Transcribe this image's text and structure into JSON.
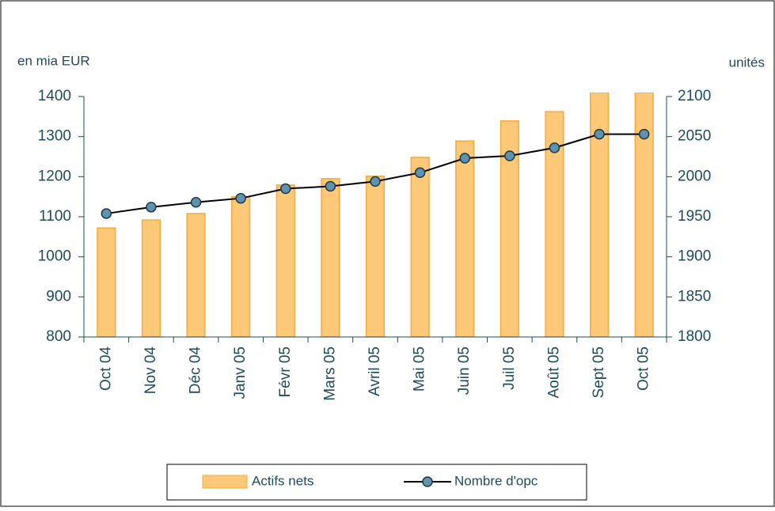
{
  "chart_data": {
    "type": "bar_line",
    "y_label": "en mia EUR",
    "y2_label": "unités",
    "categories": [
      "Oct 04",
      "Nov 04",
      "Déc 04",
      "Janv 05",
      "Févr 05",
      "Mars 05",
      "Avril 05",
      "Mai 05",
      "Juin 05",
      "Juil 05",
      "Août 05",
      "Sept 05",
      "Oct 05"
    ],
    "series": [
      {
        "name": "Actifs nets",
        "type": "bar",
        "color": "#fdc878",
        "values": [
          1072,
          1092,
          1108,
          1150,
          1179,
          1195,
          1201,
          1248,
          1289,
          1339,
          1362,
          1410,
          1410
        ]
      },
      {
        "name": "Nombre d'opc",
        "type": "line",
        "axis": "y2",
        "color": "#000000",
        "marker_color": "#5f93ad",
        "values": [
          1954,
          1962,
          1968,
          1973,
          1985,
          1988,
          1994,
          2005,
          2023,
          2026,
          2036,
          2053,
          2053
        ]
      }
    ],
    "ylim": [
      800,
      1400
    ],
    "yticks": [
      800,
      900,
      1000,
      1100,
      1200,
      1300,
      1400
    ],
    "y2lim": [
      1800,
      2100
    ],
    "y2ticks": [
      1800,
      1850,
      1900,
      1950,
      2000,
      2050,
      2100
    ],
    "legend": "bottom"
  }
}
